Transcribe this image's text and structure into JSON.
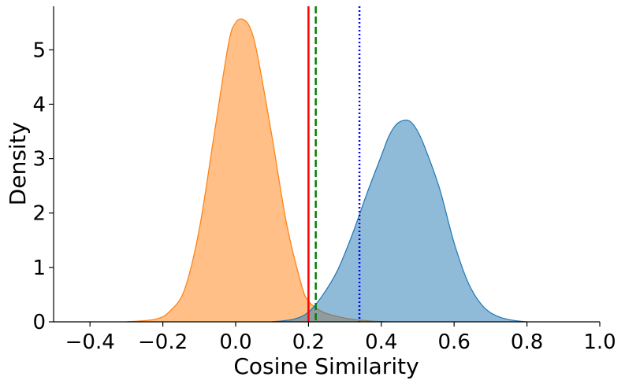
{
  "chart_data": {
    "type": "area",
    "title": "",
    "xlabel": "Cosine Similarity",
    "ylabel": "Density",
    "xlim": [
      -0.5,
      1.0
    ],
    "ylim": [
      0,
      5.8
    ],
    "xticks": [
      -0.4,
      -0.2,
      0.0,
      0.2,
      0.4,
      0.6,
      0.8,
      1.0
    ],
    "xtick_labels": [
      "−0.4",
      "−0.2",
      "0.0",
      "0.2",
      "0.4",
      "0.6",
      "0.8",
      "1.0"
    ],
    "yticks": [
      0,
      1,
      2,
      3,
      4,
      5
    ],
    "ytick_labels": [
      "0",
      "1",
      "2",
      "3",
      "4",
      "5"
    ],
    "grid": false,
    "legend": "none",
    "series": [
      {
        "color": "#ff7f0e",
        "x": [
          -0.3,
          -0.22,
          -0.18,
          -0.14,
          -0.1,
          -0.06,
          -0.02,
          0.0,
          0.02,
          0.04,
          0.06,
          0.1,
          0.14,
          0.18,
          0.2,
          0.24,
          0.3,
          0.36,
          0.42
        ],
        "y": [
          0.0,
          0.05,
          0.2,
          0.6,
          1.7,
          3.4,
          5.1,
          5.5,
          5.56,
          5.4,
          4.9,
          3.4,
          1.8,
          0.7,
          0.38,
          0.18,
          0.07,
          0.02,
          0.0
        ]
      },
      {
        "color": "#1f77b4",
        "x": [
          0.1,
          0.16,
          0.2,
          0.24,
          0.28,
          0.32,
          0.36,
          0.4,
          0.42,
          0.44,
          0.46,
          0.48,
          0.5,
          0.52,
          0.56,
          0.6,
          0.64,
          0.68,
          0.72,
          0.76,
          0.8
        ],
        "y": [
          0.0,
          0.05,
          0.18,
          0.5,
          0.95,
          1.6,
          2.35,
          3.05,
          3.4,
          3.62,
          3.7,
          3.68,
          3.5,
          3.2,
          2.45,
          1.45,
          0.7,
          0.28,
          0.1,
          0.03,
          0.0
        ]
      }
    ],
    "vlines": [
      {
        "x": 0.2,
        "color": "#ff0000",
        "style": "solid"
      },
      {
        "x": 0.22,
        "color": "#008000",
        "style": "dashed"
      },
      {
        "x": 0.34,
        "color": "#0000ff",
        "style": "dotted"
      }
    ]
  }
}
